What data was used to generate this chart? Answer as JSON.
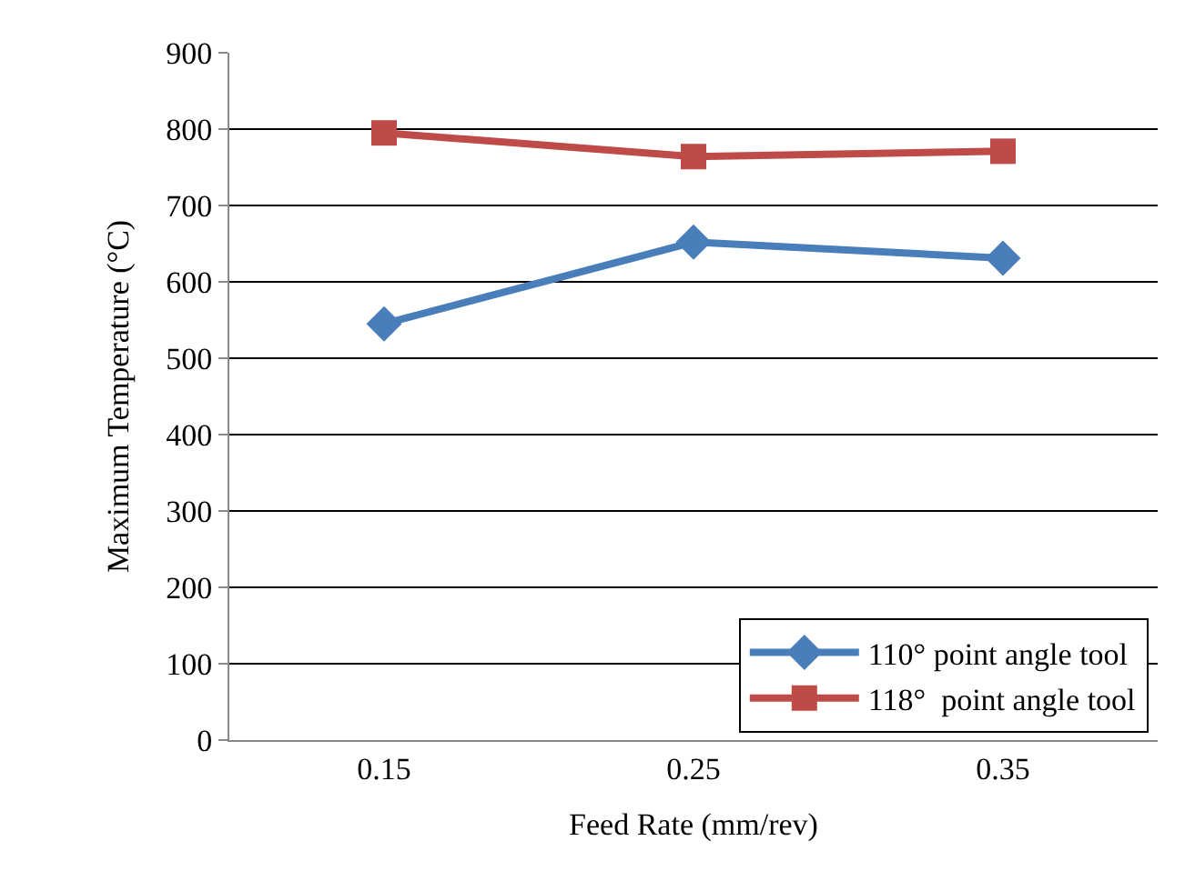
{
  "chart_data": {
    "type": "line",
    "xlabel": "Feed Rate (mm/rev)",
    "ylabel": "Maximum Temperature (°C)",
    "categories": [
      "0.15",
      "0.25",
      "0.35"
    ],
    "series": [
      {
        "name": "110° point angle tool",
        "color": "#4a7ebb",
        "marker": "diamond",
        "values": [
          545,
          652,
          631
        ]
      },
      {
        "name": "118°  point angle tool",
        "color": "#be4b48",
        "marker": "square",
        "values": [
          795,
          764,
          771
        ]
      }
    ],
    "ylim": [
      0,
      900
    ],
    "yticks": [
      0,
      100,
      200,
      300,
      400,
      500,
      600,
      700,
      800,
      900
    ],
    "grid": "y",
    "legend": "bottom right",
    "line_style": "solid"
  }
}
